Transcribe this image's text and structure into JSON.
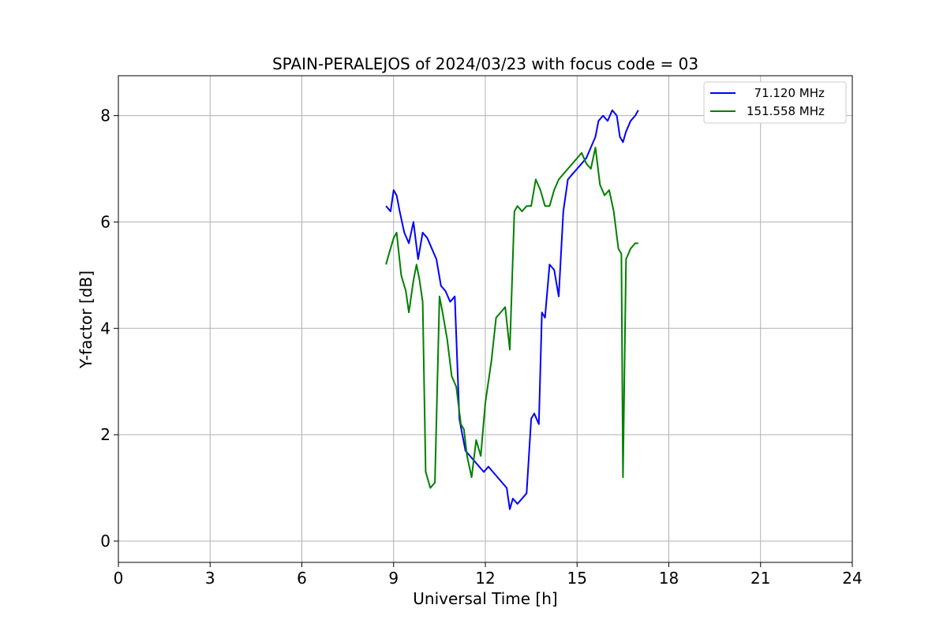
{
  "chart_data": {
    "type": "line",
    "title": "SPAIN-PERALEJOS of 2024/03/23 with focus code = 03",
    "xlabel": "Universal Time [h]",
    "ylabel": "Y-factor [dB]",
    "xlim": [
      0,
      24
    ],
    "ylim": [
      -0.4,
      8.75
    ],
    "xticks": [
      "0",
      "3",
      "6",
      "9",
      "12",
      "15",
      "18",
      "21",
      "24"
    ],
    "yticks": [
      "0",
      "2",
      "4",
      "6",
      "8"
    ],
    "grid": true,
    "legend_position": "top-right",
    "series": [
      {
        "name": "  71.120 MHz",
        "color": "#0000ff",
        "x": [
          8.75,
          8.9,
          9.0,
          9.1,
          9.2,
          9.35,
          9.5,
          9.65,
          9.8,
          9.95,
          10.1,
          10.25,
          10.4,
          10.55,
          10.7,
          10.85,
          11.0,
          11.15,
          11.25,
          11.35,
          11.5,
          11.65,
          11.8,
          11.95,
          12.1,
          12.25,
          12.4,
          12.55,
          12.7,
          12.8,
          12.9,
          13.05,
          13.2,
          13.35,
          13.5,
          13.6,
          13.75,
          13.85,
          13.95,
          14.1,
          14.25,
          14.4,
          14.55,
          14.7,
          14.85,
          15.0,
          15.15,
          15.3,
          15.45,
          15.6,
          15.7,
          15.85,
          16.0,
          16.15,
          16.3,
          16.4,
          16.5,
          16.6,
          16.75,
          16.9,
          17.0
        ],
        "y": [
          6.3,
          6.2,
          6.6,
          6.5,
          6.2,
          5.8,
          5.6,
          6.0,
          5.3,
          5.8,
          5.7,
          5.5,
          5.3,
          4.8,
          4.7,
          4.5,
          4.6,
          2.3,
          2.0,
          1.7,
          1.6,
          1.5,
          1.4,
          1.3,
          1.4,
          1.3,
          1.2,
          1.1,
          1.0,
          0.6,
          0.8,
          0.7,
          0.8,
          0.9,
          2.3,
          2.4,
          2.2,
          4.3,
          4.2,
          5.2,
          5.1,
          4.6,
          6.2,
          6.8,
          6.9,
          7.0,
          7.1,
          7.2,
          7.4,
          7.6,
          7.9,
          8.0,
          7.9,
          8.1,
          8.0,
          7.6,
          7.5,
          7.7,
          7.9,
          8.0,
          8.1
        ]
      },
      {
        "name": "151.558 MHz",
        "color": "#008000",
        "x": [
          8.75,
          8.85,
          9.0,
          9.1,
          9.25,
          9.4,
          9.5,
          9.65,
          9.75,
          9.85,
          9.95,
          10.05,
          10.2,
          10.35,
          10.5,
          10.6,
          10.75,
          10.9,
          11.05,
          11.2,
          11.3,
          11.4,
          11.55,
          11.7,
          11.85,
          12.0,
          12.2,
          12.35,
          12.5,
          12.65,
          12.8,
          12.95,
          13.05,
          13.2,
          13.35,
          13.5,
          13.65,
          13.8,
          13.95,
          14.1,
          14.25,
          14.4,
          14.55,
          14.7,
          14.85,
          15.0,
          15.15,
          15.3,
          15.45,
          15.6,
          15.75,
          15.9,
          16.05,
          16.2,
          16.35,
          16.45,
          16.5,
          16.6,
          16.75,
          16.9,
          17.0
        ],
        "y": [
          5.2,
          5.4,
          5.7,
          5.8,
          5.0,
          4.7,
          4.3,
          4.9,
          5.2,
          4.9,
          4.5,
          1.3,
          1.0,
          1.1,
          4.6,
          4.3,
          3.8,
          3.1,
          2.9,
          2.2,
          2.1,
          1.6,
          1.2,
          1.9,
          1.6,
          2.6,
          3.4,
          4.2,
          4.3,
          4.4,
          3.6,
          6.2,
          6.3,
          6.2,
          6.3,
          6.3,
          6.8,
          6.6,
          6.3,
          6.3,
          6.6,
          6.8,
          6.9,
          7.0,
          7.1,
          7.2,
          7.3,
          7.1,
          7.0,
          7.4,
          6.7,
          6.5,
          6.6,
          6.2,
          5.5,
          5.4,
          1.2,
          5.3,
          5.5,
          5.6,
          5.6
        ]
      }
    ]
  }
}
